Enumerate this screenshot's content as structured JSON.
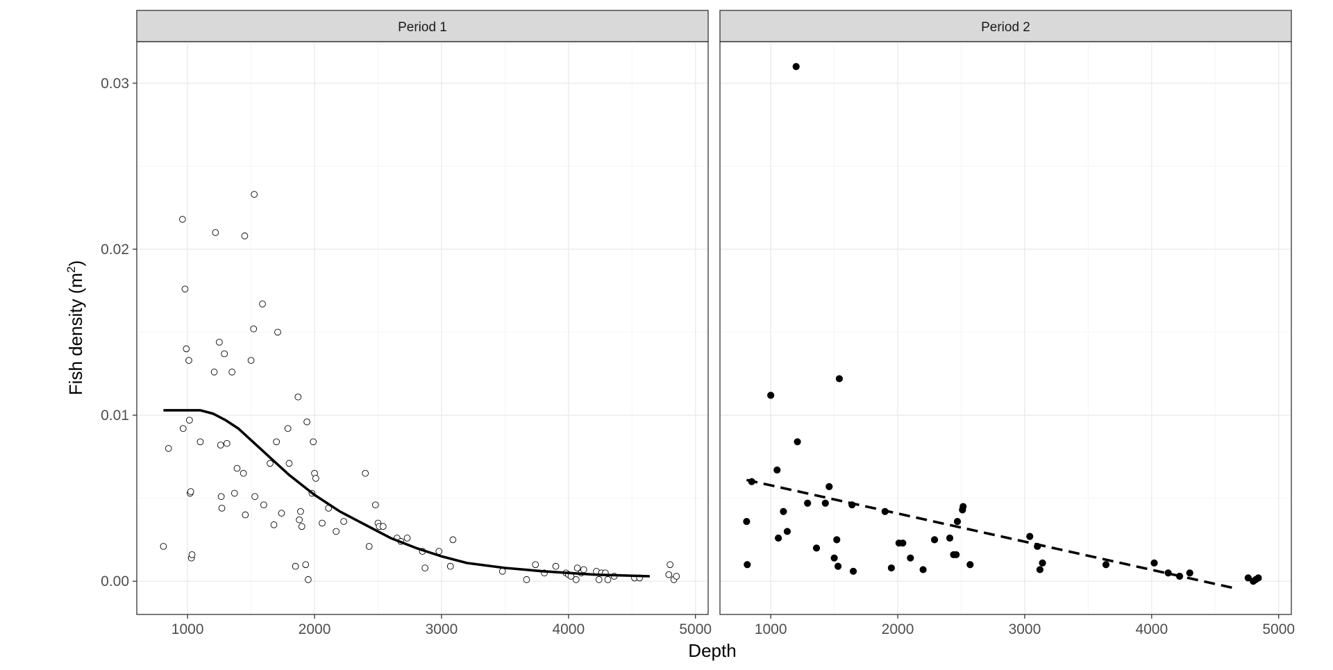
{
  "chart_data": {
    "type": "scatter",
    "xlabel": "Depth",
    "ylabel": "Fish density (m",
    "ylabel_superscript": "2",
    "ylabel_close": ")",
    "xlim": [
      600,
      5100
    ],
    "ylim": [
      -0.002,
      0.0325
    ],
    "x_ticks": [
      1000,
      2000,
      3000,
      4000,
      5000
    ],
    "x_tick_labels": [
      "1000",
      "2000",
      "3000",
      "4000",
      "5000"
    ],
    "y_ticks": [
      0.0,
      0.01,
      0.02,
      0.03
    ],
    "y_tick_labels": [
      "0.00",
      "0.01",
      "0.02",
      "0.03"
    ],
    "grid": true,
    "colors": {
      "point": "#000000",
      "strip_bg": "#d9d9d9",
      "grid_major": "#ebebeb",
      "grid_minor": "#f5f5f5",
      "border": "#333333"
    },
    "panels": [
      {
        "strip": "Period 1",
        "marker": "open-circle",
        "line_style": "solid",
        "points": [
          [
            810,
            0.0021
          ],
          [
            850,
            0.008
          ],
          [
            960,
            0.0218
          ],
          [
            965,
            0.0092
          ],
          [
            980,
            0.0176
          ],
          [
            990,
            0.014
          ],
          [
            1010,
            0.0133
          ],
          [
            1015,
            0.0097
          ],
          [
            1020,
            0.0053
          ],
          [
            1025,
            0.0054
          ],
          [
            1030,
            0.0014
          ],
          [
            1035,
            0.0016
          ],
          [
            1100,
            0.0084
          ],
          [
            1210,
            0.0126
          ],
          [
            1220,
            0.021
          ],
          [
            1250,
            0.0144
          ],
          [
            1260,
            0.0082
          ],
          [
            1265,
            0.0051
          ],
          [
            1270,
            0.0044
          ],
          [
            1290,
            0.0137
          ],
          [
            1310,
            0.0083
          ],
          [
            1350,
            0.0126
          ],
          [
            1370,
            0.0053
          ],
          [
            1390,
            0.0068
          ],
          [
            1440,
            0.0065
          ],
          [
            1450,
            0.0208
          ],
          [
            1455,
            0.004
          ],
          [
            1500,
            0.0133
          ],
          [
            1520,
            0.0152
          ],
          [
            1525,
            0.0233
          ],
          [
            1530,
            0.0051
          ],
          [
            1590,
            0.0167
          ],
          [
            1600,
            0.0046
          ],
          [
            1650,
            0.0071
          ],
          [
            1680,
            0.0034
          ],
          [
            1700,
            0.0084
          ],
          [
            1710,
            0.015
          ],
          [
            1740,
            0.0041
          ],
          [
            1790,
            0.0092
          ],
          [
            1800,
            0.0071
          ],
          [
            1850,
            0.0009
          ],
          [
            1870,
            0.0111
          ],
          [
            1880,
            0.0037
          ],
          [
            1890,
            0.0042
          ],
          [
            1900,
            0.0033
          ],
          [
            1930,
            0.001
          ],
          [
            1940,
            0.0096
          ],
          [
            1950,
            0.0001
          ],
          [
            1980,
            0.0053
          ],
          [
            1990,
            0.0084
          ],
          [
            2000,
            0.0065
          ],
          [
            2010,
            0.0062
          ],
          [
            2060,
            0.0035
          ],
          [
            2110,
            0.0044
          ],
          [
            2170,
            0.003
          ],
          [
            2230,
            0.0036
          ],
          [
            2400,
            0.0065
          ],
          [
            2430,
            0.0021
          ],
          [
            2480,
            0.0046
          ],
          [
            2500,
            0.0035
          ],
          [
            2510,
            0.0033
          ],
          [
            2540,
            0.0033
          ],
          [
            2650,
            0.0026
          ],
          [
            2680,
            0.0024
          ],
          [
            2730,
            0.0026
          ],
          [
            2850,
            0.0018
          ],
          [
            2870,
            0.0008
          ],
          [
            2980,
            0.0018
          ],
          [
            3070,
            0.0009
          ],
          [
            3090,
            0.0025
          ],
          [
            3480,
            0.0006
          ],
          [
            3670,
            0.0001
          ],
          [
            3740,
            0.001
          ],
          [
            3810,
            0.0005
          ],
          [
            3900,
            0.0009
          ],
          [
            3980,
            0.0005
          ],
          [
            4000,
            0.0004
          ],
          [
            4020,
            0.0003
          ],
          [
            4060,
            0.0001
          ],
          [
            4070,
            0.0008
          ],
          [
            4100,
            0.0005
          ],
          [
            4120,
            0.0007
          ],
          [
            4220,
            0.0006
          ],
          [
            4240,
            0.0001
          ],
          [
            4260,
            0.0005
          ],
          [
            4290,
            0.0005
          ],
          [
            4310,
            0.0001
          ],
          [
            4360,
            0.0003
          ],
          [
            4520,
            0.0002
          ],
          [
            4560,
            0.0002
          ],
          [
            4790,
            0.0004
          ],
          [
            4800,
            0.001
          ],
          [
            4830,
            0.0001
          ],
          [
            4850,
            0.0003
          ]
        ],
        "fit": [
          [
            810,
            0.0103
          ],
          [
            1000,
            0.0103
          ],
          [
            1100,
            0.0103
          ],
          [
            1200,
            0.0101
          ],
          [
            1300,
            0.0097
          ],
          [
            1400,
            0.0092
          ],
          [
            1500,
            0.0085
          ],
          [
            1600,
            0.0078
          ],
          [
            1700,
            0.0071
          ],
          [
            1800,
            0.0064
          ],
          [
            1900,
            0.0058
          ],
          [
            2000,
            0.0052
          ],
          [
            2200,
            0.0042
          ],
          [
            2400,
            0.0034
          ],
          [
            2600,
            0.0026
          ],
          [
            2800,
            0.002
          ],
          [
            3000,
            0.0015
          ],
          [
            3200,
            0.0011
          ],
          [
            3500,
            0.0008
          ],
          [
            3800,
            0.0006
          ],
          [
            4200,
            0.0004
          ],
          [
            4640,
            0.0003
          ]
        ]
      },
      {
        "strip": "Period 2",
        "marker": "filled-circle",
        "line_style": "dashed",
        "points": [
          [
            810,
            0.0036
          ],
          [
            815,
            0.001
          ],
          [
            850,
            0.006
          ],
          [
            1000,
            0.0112
          ],
          [
            1050,
            0.0067
          ],
          [
            1060,
            0.0026
          ],
          [
            1100,
            0.0042
          ],
          [
            1130,
            0.003
          ],
          [
            1200,
            0.031
          ],
          [
            1210,
            0.0084
          ],
          [
            1290,
            0.0047
          ],
          [
            1360,
            0.002
          ],
          [
            1430,
            0.0047
          ],
          [
            1460,
            0.0057
          ],
          [
            1500,
            0.0014
          ],
          [
            1520,
            0.0025
          ],
          [
            1530,
            0.0009
          ],
          [
            1540,
            0.0122
          ],
          [
            1640,
            0.0046
          ],
          [
            1650,
            0.0006
          ],
          [
            1900,
            0.0042
          ],
          [
            1950,
            0.0008
          ],
          [
            2010,
            0.0023
          ],
          [
            2040,
            0.0023
          ],
          [
            2100,
            0.0014
          ],
          [
            2200,
            0.0007
          ],
          [
            2290,
            0.0025
          ],
          [
            2410,
            0.0026
          ],
          [
            2440,
            0.0016
          ],
          [
            2460,
            0.0016
          ],
          [
            2470,
            0.0036
          ],
          [
            2510,
            0.0043
          ],
          [
            2515,
            0.0045
          ],
          [
            2570,
            0.001
          ],
          [
            3040,
            0.0027
          ],
          [
            3100,
            0.0021
          ],
          [
            3120,
            0.0007
          ],
          [
            3140,
            0.0011
          ],
          [
            3640,
            0.001
          ],
          [
            4020,
            0.0011
          ],
          [
            4130,
            0.0005
          ],
          [
            4220,
            0.0003
          ],
          [
            4300,
            0.0005
          ],
          [
            4760,
            0.0002
          ],
          [
            4800,
            0.0
          ],
          [
            4820,
            0.0001
          ],
          [
            4840,
            0.0002
          ]
        ],
        "fit": [
          [
            810,
            0.0061
          ],
          [
            4640,
            -0.0004
          ]
        ]
      }
    ]
  }
}
